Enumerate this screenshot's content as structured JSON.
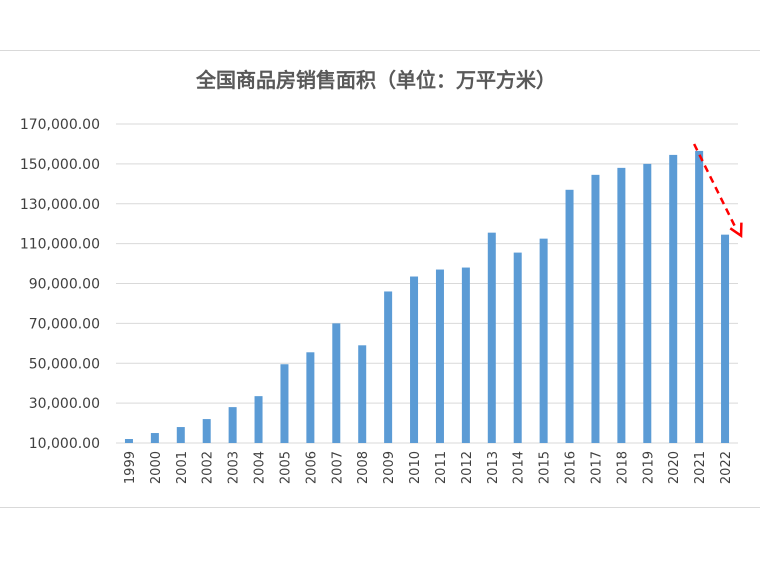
{
  "chart_data": {
    "type": "bar",
    "title": "全国商品房销售面积（单位：万平方米）",
    "xlabel": "",
    "ylabel": "",
    "categories": [
      "1999",
      "2000",
      "2001",
      "2002",
      "2003",
      "2004",
      "2005",
      "2006",
      "2007",
      "2008",
      "2009",
      "2010",
      "2011",
      "2012",
      "2013",
      "2014",
      "2015",
      "2016",
      "2017",
      "2018",
      "2019",
      "2020",
      "2021",
      "2022"
    ],
    "values": [
      12000,
      15000,
      18000,
      22000,
      28000,
      33500,
      49500,
      55500,
      70000,
      59000,
      86000,
      93500,
      97000,
      98000,
      115500,
      105500,
      112500,
      137000,
      144500,
      148000,
      150000,
      154500,
      156500,
      114500
    ],
    "ylim": [
      10000,
      170000
    ],
    "yticks": [
      "10,000.00",
      "30,000.00",
      "50,000.00",
      "70,000.00",
      "90,000.00",
      "110,000.00",
      "130,000.00",
      "150,000.00",
      "170,000.00"
    ],
    "ytick_values": [
      10000,
      30000,
      50000,
      70000,
      90000,
      110000,
      130000,
      150000,
      170000
    ],
    "grid": true,
    "legend": "none",
    "colors": {
      "bar": "#5b9bd5",
      "grid": "#d9d9d9",
      "arrow": "#ff0000"
    },
    "annotation": {
      "type": "dashed-arrow",
      "from_category": "2021",
      "to_category": "2022",
      "from_value": 170000,
      "to_value": 113000
    }
  }
}
